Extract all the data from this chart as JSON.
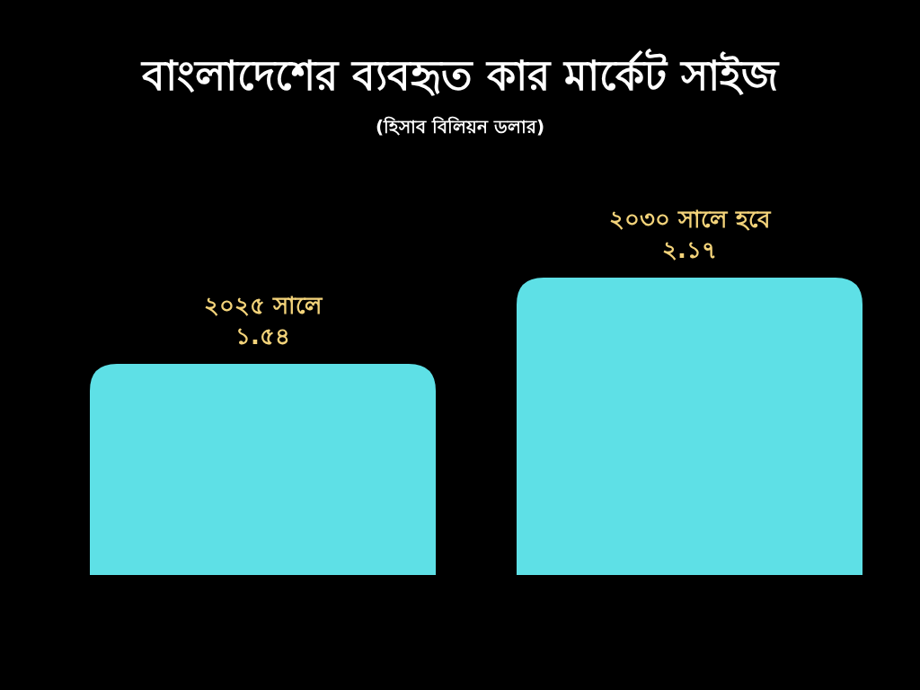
{
  "chart_data": {
    "type": "bar",
    "title": "বাংলাদেশের ব্যবহৃত কার মার্কেট সাইজ",
    "subtitle": "(হিসাব বিলিয়ন ডলার)",
    "categories": [
      null,
      null
    ],
    "values": [
      1.54,
      2.17
    ],
    "value_labels": [
      "২০২৫ সালে\n১.৫৪",
      "২০৩০ সালে হবে\n২.১৭"
    ],
    "color": "#5ee0e6"
  }
}
